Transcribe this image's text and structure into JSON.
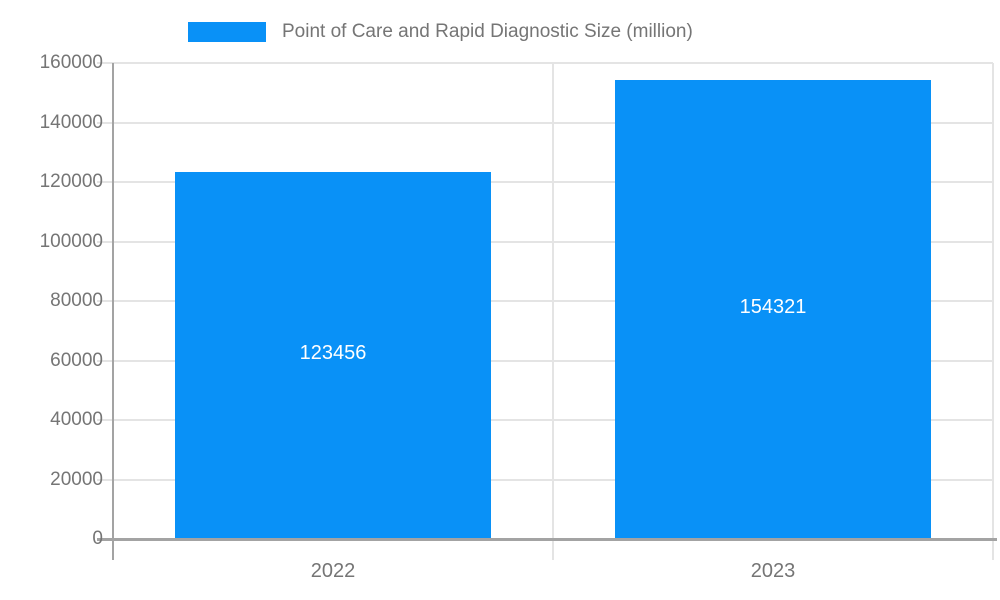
{
  "chart_data": {
    "type": "bar",
    "title": "",
    "legend": {
      "label": "Point of Care and Rapid Diagnostic Size (million)",
      "position": "top"
    },
    "categories": [
      "2022",
      "2023"
    ],
    "series": [
      {
        "name": "Point of Care and Rapid Diagnostic Size (million)",
        "values": [
          123456,
          154321
        ]
      }
    ],
    "data_labels": [
      "123456",
      "154321"
    ],
    "xlabel": "",
    "ylabel": "",
    "yticks": [
      0,
      20000,
      40000,
      60000,
      80000,
      100000,
      120000,
      140000,
      160000
    ],
    "ylim": [
      0,
      160000
    ],
    "grid": true,
    "colors": {
      "bar": "#0991f7",
      "grid": "#e4e4e4",
      "axis": "#a3a3a3",
      "tick_label": "#757575",
      "data_label": "#ffffff",
      "background": "#ffffff"
    }
  }
}
